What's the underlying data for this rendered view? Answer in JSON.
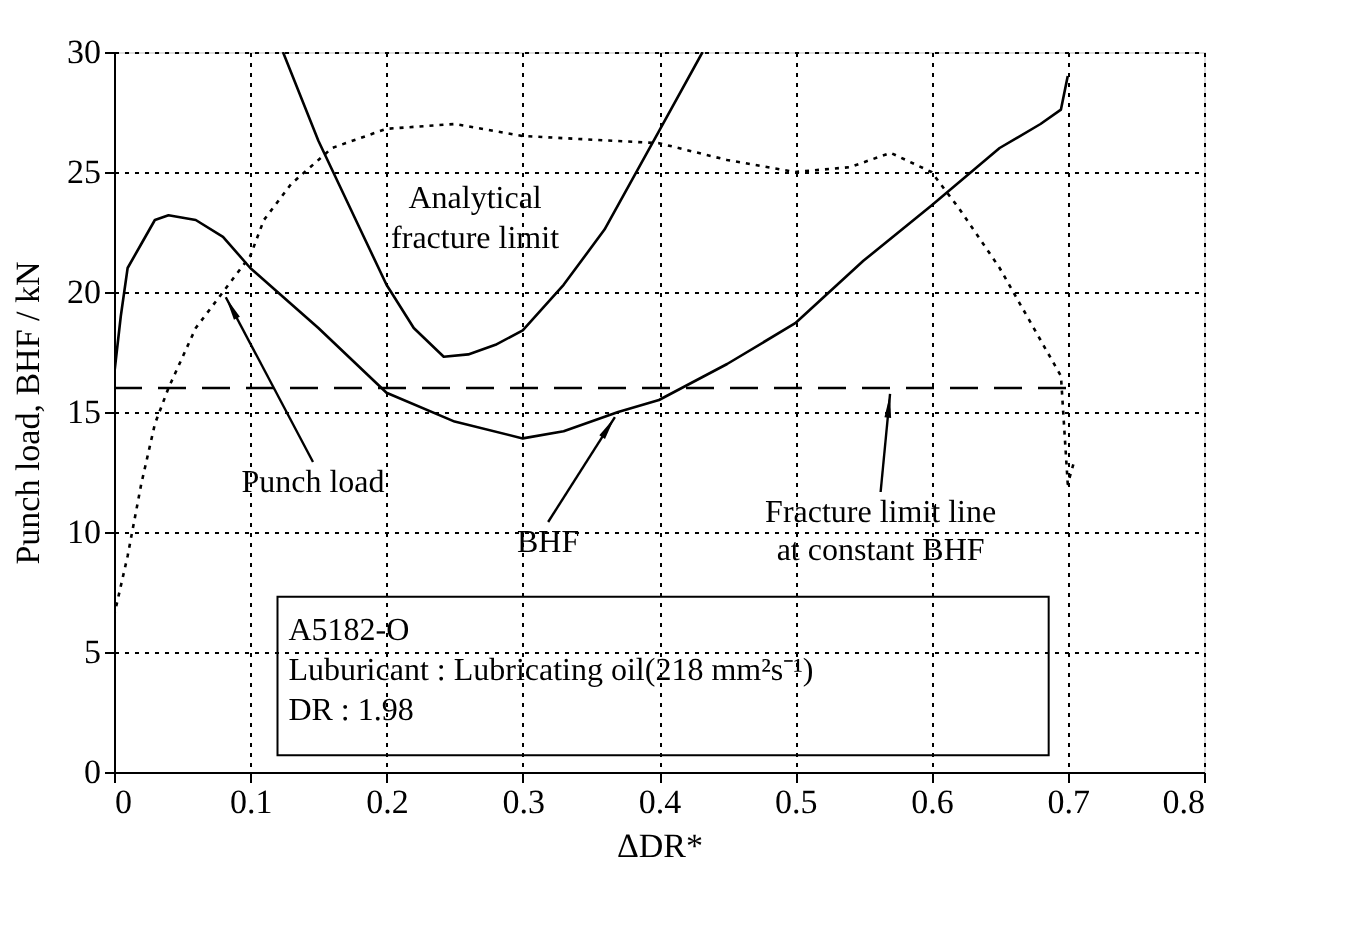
{
  "chart_data": {
    "type": "line",
    "xlabel": "ΔDR*",
    "ylabel": "Punch load, BHF / kN",
    "xlim": [
      0,
      0.8
    ],
    "xticks": [
      0,
      0.1,
      0.2,
      0.3,
      0.4,
      0.5,
      0.6,
      0.7,
      0.8
    ],
    "ylim": [
      0,
      30
    ],
    "yticks": [
      0,
      5,
      10,
      15,
      20,
      25,
      30
    ],
    "grid": true,
    "series": [
      {
        "color": "#000000",
        "line_style": "solid",
        "x": [
          0,
          0.005,
          0.01,
          0.02,
          0.03,
          0.04,
          0.06,
          0.08,
          0.1,
          0.12,
          0.15,
          0.2,
          0.25,
          0.3,
          0.33,
          0.37,
          0.4,
          0.45,
          0.5,
          0.55,
          0.6,
          0.65,
          0.68,
          0.695,
          0.7
        ],
        "values": [
          16.5,
          19,
          21,
          22,
          23,
          23.2,
          23,
          22.3,
          21,
          20,
          18.5,
          15.8,
          14.6,
          13.9,
          14.2,
          15,
          15.5,
          17,
          18.7,
          21.3,
          23.6,
          26,
          27,
          27.6,
          29
        ]
      },
      {
        "color": "#000000",
        "line_style": "solid",
        "x": [
          0.124,
          0.15,
          0.18,
          0.2,
          0.22,
          0.242,
          0.26,
          0.28,
          0.3,
          0.33,
          0.36,
          0.4,
          0.432
        ],
        "values": [
          30,
          26.3,
          22.7,
          20.3,
          18.5,
          17.3,
          17.4,
          17.8,
          18.4,
          20.3,
          22.6,
          26.7,
          30
        ]
      },
      {
        "color": "#000000",
        "line_style": "dotted",
        "x": [
          0,
          0.01,
          0.02,
          0.03,
          0.04,
          0.06,
          0.08,
          0.1,
          0.11,
          0.13,
          0.16,
          0.2,
          0.25,
          0.3,
          0.4,
          0.45,
          0.5,
          0.54,
          0.57,
          0.6,
          0.62,
          0.65,
          0.68,
          0.695,
          0.7,
          0.705
        ],
        "values": [
          6.5,
          9,
          12,
          14.5,
          16,
          18.5,
          20,
          21.5,
          23,
          24.5,
          26,
          26.8,
          27,
          26.5,
          26.2,
          25.5,
          25,
          25.2,
          25.8,
          25,
          23.5,
          21,
          18,
          16.5,
          12,
          13
        ]
      },
      {
        "color": "#000000",
        "line_style": "dashed",
        "x": [
          0,
          0.7
        ],
        "values": [
          16,
          16
        ]
      }
    ],
    "annotations": [
      "Analytical\nfracture limit",
      {
        "text": "Punch load",
        "x": 0.08,
        "y": 20
      },
      {
        "text": "BHF",
        "x": 0.37,
        "y": 15
      },
      {
        "text": "Fracture limit line\nat constant BHF",
        "x": 0.57,
        "y": 16
      },
      "A5182-O\nLuburicant : Lubricating oil(218 mm²s⁻¹)\nDR : 1.98"
    ]
  }
}
